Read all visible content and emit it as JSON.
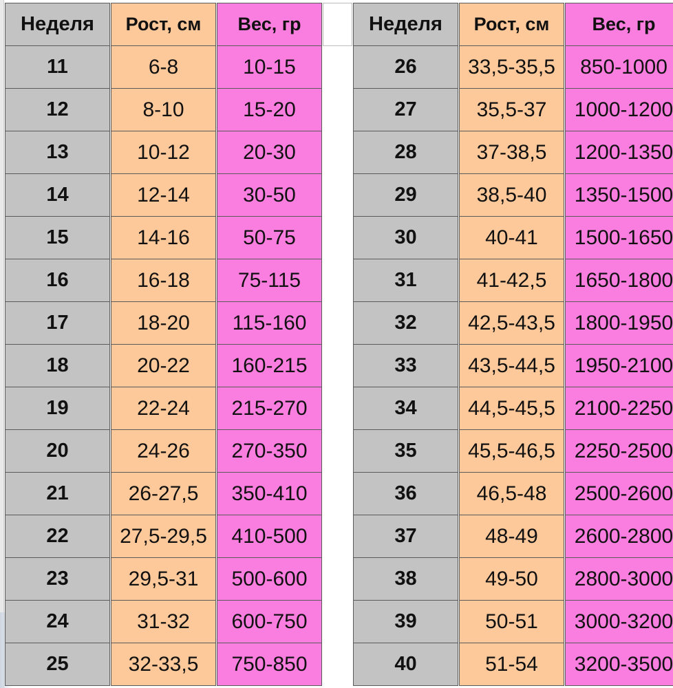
{
  "headers": [
    "Неделя",
    "Рост, см",
    "Вес, гр"
  ],
  "left_table": [
    {
      "week": "11",
      "height": "6-8",
      "weight": "10-15"
    },
    {
      "week": "12",
      "height": "8-10",
      "weight": "15-20"
    },
    {
      "week": "13",
      "height": "10-12",
      "weight": "20-30"
    },
    {
      "week": "14",
      "height": "12-14",
      "weight": "30-50"
    },
    {
      "week": "15",
      "height": "14-16",
      "weight": "50-75"
    },
    {
      "week": "16",
      "height": "16-18",
      "weight": "75-115"
    },
    {
      "week": "17",
      "height": "18-20",
      "weight": "115-160"
    },
    {
      "week": "18",
      "height": "20-22",
      "weight": "160-215"
    },
    {
      "week": "19",
      "height": "22-24",
      "weight": "215-270"
    },
    {
      "week": "20",
      "height": "24-26",
      "weight": "270-350"
    },
    {
      "week": "21",
      "height": "26-27,5",
      "weight": "350-410"
    },
    {
      "week": "22",
      "height": "27,5-29,5",
      "weight": "410-500"
    },
    {
      "week": "23",
      "height": "29,5-31",
      "weight": "500-600"
    },
    {
      "week": "24",
      "height": "31-32",
      "weight": "600-750"
    },
    {
      "week": "25",
      "height": "32-33,5",
      "weight": "750-850"
    }
  ],
  "right_table": [
    {
      "week": "26",
      "height": "33,5-35,5",
      "weight": "850-1000"
    },
    {
      "week": "27",
      "height": "35,5-37",
      "weight": "1000-1200"
    },
    {
      "week": "28",
      "height": "37-38,5",
      "weight": "1200-1350"
    },
    {
      "week": "29",
      "height": "38,5-40",
      "weight": "1350-1500"
    },
    {
      "week": "30",
      "height": "40-41",
      "weight": "1500-1650"
    },
    {
      "week": "31",
      "height": "41-42,5",
      "weight": "1650-1800"
    },
    {
      "week": "32",
      "height": "42,5-43,5",
      "weight": "1800-1950"
    },
    {
      "week": "33",
      "height": "43,5-44,5",
      "weight": "1950-2100"
    },
    {
      "week": "34",
      "height": "44,5-45,5",
      "weight": "2100-2250"
    },
    {
      "week": "35",
      "height": "45,5-46,5",
      "weight": "2250-2500"
    },
    {
      "week": "36",
      "height": "46,5-48",
      "weight": "2500-2600"
    },
    {
      "week": "37",
      "height": "48-49",
      "weight": "2600-2800"
    },
    {
      "week": "38",
      "height": "49-50",
      "weight": "2800-3000"
    },
    {
      "week": "39",
      "height": "50-51",
      "weight": "3000-3200"
    },
    {
      "week": "40",
      "height": "51-54",
      "weight": "3200-3500"
    }
  ],
  "colors": {
    "week_fill": "#c3c3c3",
    "height_fill": "#fdc99a",
    "weight_fill": "#f97edf",
    "border": "#5a5a5a"
  }
}
